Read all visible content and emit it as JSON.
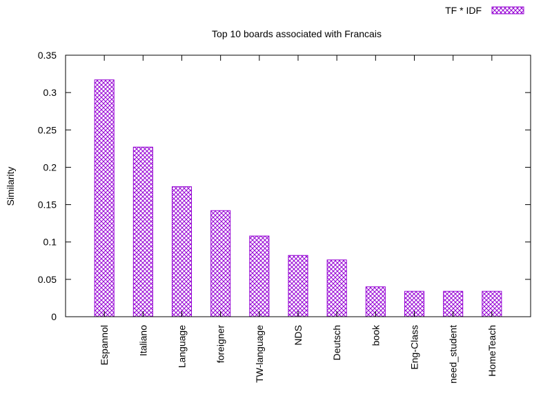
{
  "chart_data": {
    "type": "bar",
    "title": "Top 10 boards associated with Francais",
    "xlabel": "",
    "ylabel": "Similarity",
    "categories": [
      "Espannol",
      "Italiano",
      "Language",
      "foreigner",
      "TW-language",
      "NDS",
      "Deutsch",
      "book",
      "Eng-Class",
      "need_student",
      "HomeTeach"
    ],
    "series": [
      {
        "name": "TF * IDF",
        "values": [
          0.317,
          0.227,
          0.174,
          0.142,
          0.108,
          0.082,
          0.076,
          0.04,
          0.034,
          0.034,
          0.034
        ]
      }
    ],
    "ylim": [
      0,
      0.35
    ],
    "yticks": [
      "0",
      "0.05",
      "0.1",
      "0.15",
      "0.2",
      "0.25",
      "0.3",
      "0.35"
    ],
    "grid": false,
    "legend_position": "top-right",
    "color": "#9400d3"
  }
}
